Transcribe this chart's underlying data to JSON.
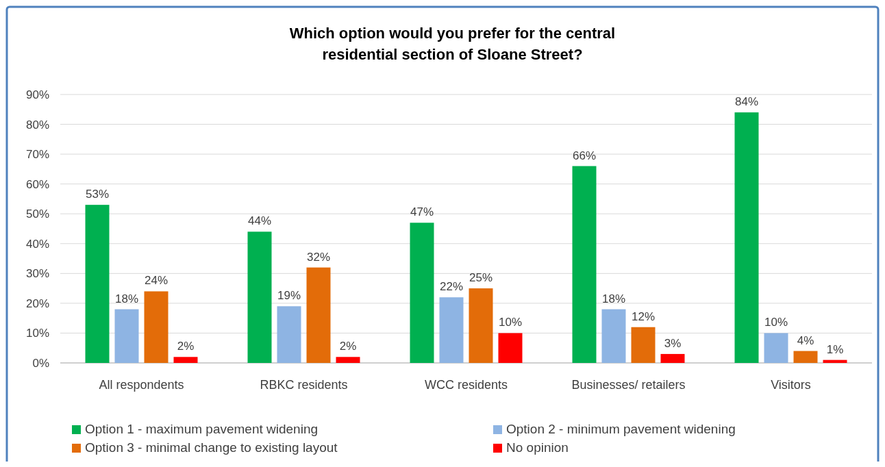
{
  "chart_data": {
    "type": "bar",
    "title": "Which option would you prefer for the central\nresidential section of Sloane Street?",
    "categories": [
      "All respondents",
      "RBKC residents",
      "WCC residents",
      "Businesses/ retailers",
      "Visitors"
    ],
    "series": [
      {
        "name": "Option 1 - maximum pavement widening",
        "color": "#00b050",
        "values": [
          53,
          44,
          47,
          66,
          84
        ],
        "value_labels": [
          "53%",
          "44%",
          "47%",
          "66%",
          "84%"
        ]
      },
      {
        "name": "Option 2 - minimum pavement widening",
        "color": "#8eb4e3",
        "values": [
          18,
          19,
          22,
          18,
          10
        ],
        "value_labels": [
          "18%",
          "19%",
          "22%",
          "18%",
          "10%"
        ]
      },
      {
        "name": "Option 3 - minimal change to existing layout",
        "color": "#e36c09",
        "values": [
          24,
          32,
          25,
          12,
          4
        ],
        "value_labels": [
          "24%",
          "32%",
          "25%",
          "12%",
          "4%"
        ]
      },
      {
        "name": "No opinion",
        "color": "#ff0000",
        "values": [
          2,
          2,
          10,
          3,
          1
        ],
        "value_labels": [
          "2%",
          "2%",
          "10%",
          "3%",
          "1%"
        ]
      }
    ],
    "ylim": [
      0,
      90
    ],
    "yticks": [
      {
        "value": 0,
        "label": "0%"
      },
      {
        "value": 10,
        "label": "10%"
      },
      {
        "value": 20,
        "label": "20%"
      },
      {
        "value": 30,
        "label": "30%"
      },
      {
        "value": 40,
        "label": "40%"
      },
      {
        "value": 50,
        "label": "50%"
      },
      {
        "value": 60,
        "label": "60%"
      },
      {
        "value": 70,
        "label": "70%"
      },
      {
        "value": 80,
        "label": "80%"
      },
      {
        "value": 90,
        "label": "90%"
      }
    ],
    "grid": "y",
    "legend": "bottom"
  }
}
